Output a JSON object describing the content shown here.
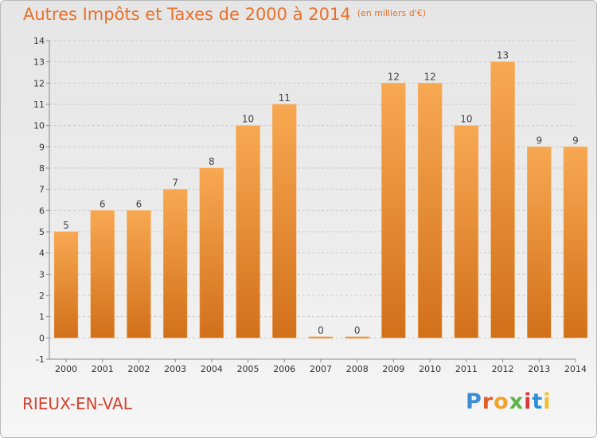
{
  "header": {
    "title": "Autres Impôts et Taxes de 2000 à 2014",
    "unit": "(en milliers d'€)"
  },
  "place_name": "RIEUX-EN-VAL",
  "logo": {
    "text": "Proxiti",
    "colors": [
      "#3b8ed6",
      "#e35d2b",
      "#f0a22c",
      "#5bb445",
      "#d83b3b",
      "#2f8fd5",
      "#f0c02c"
    ]
  },
  "colors": {
    "bar_top": "#f8a852",
    "bar_bottom": "#d2701a",
    "title": "#e8702a",
    "place": "#d1432d",
    "grid": "#c8c8c8",
    "axis": "#8a8a8a"
  },
  "chart_data": {
    "type": "bar",
    "categories": [
      "2000",
      "2001",
      "2002",
      "2003",
      "2004",
      "2005",
      "2006",
      "2007",
      "2008",
      "2009",
      "2010",
      "2011",
      "2012",
      "2013",
      "2014"
    ],
    "values": [
      5,
      6,
      6,
      7,
      8,
      10,
      11,
      0,
      0,
      12,
      12,
      10,
      13,
      9,
      9
    ],
    "title": "Autres Impôts et Taxes de 2000 à 2014",
    "subtitle": "(en milliers d'€)",
    "xlabel": "",
    "ylabel": "",
    "ylim": [
      -1,
      14
    ],
    "yticks": [
      "-1",
      "0",
      "1",
      "2",
      "3",
      "4",
      "5",
      "6",
      "7",
      "8",
      "9",
      "10",
      "11",
      "12",
      "13",
      "14"
    ],
    "grid": "horizontal dashed",
    "legend": "none",
    "data_labels": true
  }
}
